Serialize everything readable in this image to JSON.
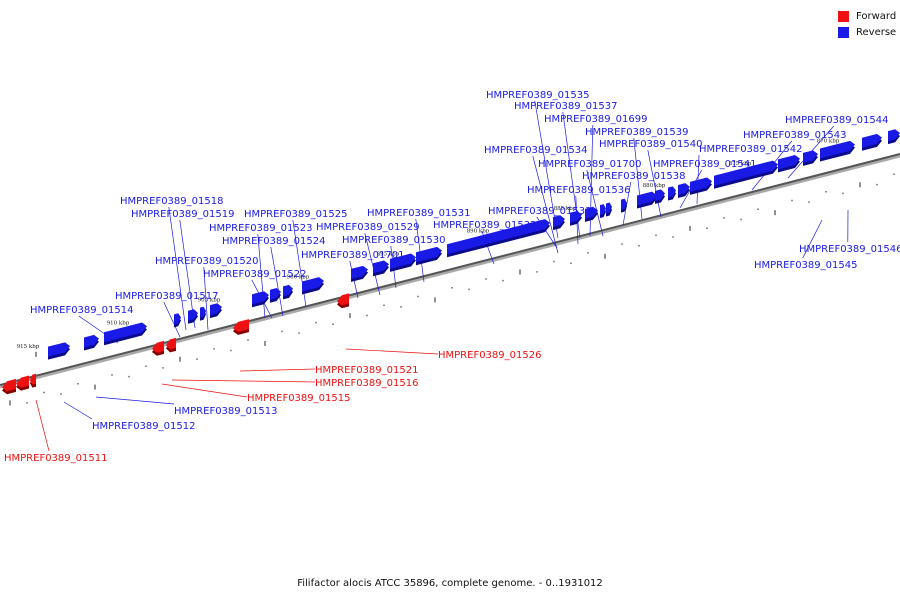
{
  "legend": {
    "forward": {
      "label": "Forward",
      "color": "#ee1111"
    },
    "reverse": {
      "label": "Reverse",
      "color": "#1a1ae6"
    }
  },
  "caption": "Filifactor alocis ATCC 35896, complete genome. - 0..1931012",
  "scale_labels": [
    "870 kbp",
    "875 kbp",
    "880 kbp",
    "885 kbp",
    "890 kbp",
    "895 kbp",
    "900 kbp",
    "905 kbp",
    "910 kbp",
    "915 kbp"
  ],
  "genes": {
    "reverse": [
      "HMPREF0389_01514",
      "HMPREF0389_01517",
      "HMPREF0389_01518",
      "HMPREF0389_01519",
      "HMPREF0389_01520",
      "HMPREF0389_01522",
      "HMPREF0389_01523",
      "HMPREF0389_01524",
      "HMPREF0389_01525",
      "HMPREF0389_01701",
      "HMPREF0389_01529",
      "HMPREF0389_01530",
      "HMPREF0389_01531",
      "HMPREF0389_01532",
      "HMPREF0389_01533",
      "HMPREF0389_01534",
      "HMPREF0389_01535",
      "HMPREF0389_01536",
      "HMPREF0389_01537",
      "HMPREF0389_01699",
      "HMPREF0389_01700",
      "HMPREF0389_01538",
      "HMPREF0389_01539",
      "HMPREF0389_01540",
      "HMPREF0389_01541",
      "HMPREF0389_01542",
      "HMPREF0389_01543",
      "HMPREF0389_01544",
      "HMPREF0389_01545",
      "HMPREF0389_01546",
      "HMPREF0389_01512",
      "HMPREF0389_01513"
    ],
    "forward": [
      "HMPREF0389_01526",
      "HMPREF0389_01521",
      "HMPREF0389_01516",
      "HMPREF0389_01515",
      "HMPREF0389_01511"
    ]
  }
}
